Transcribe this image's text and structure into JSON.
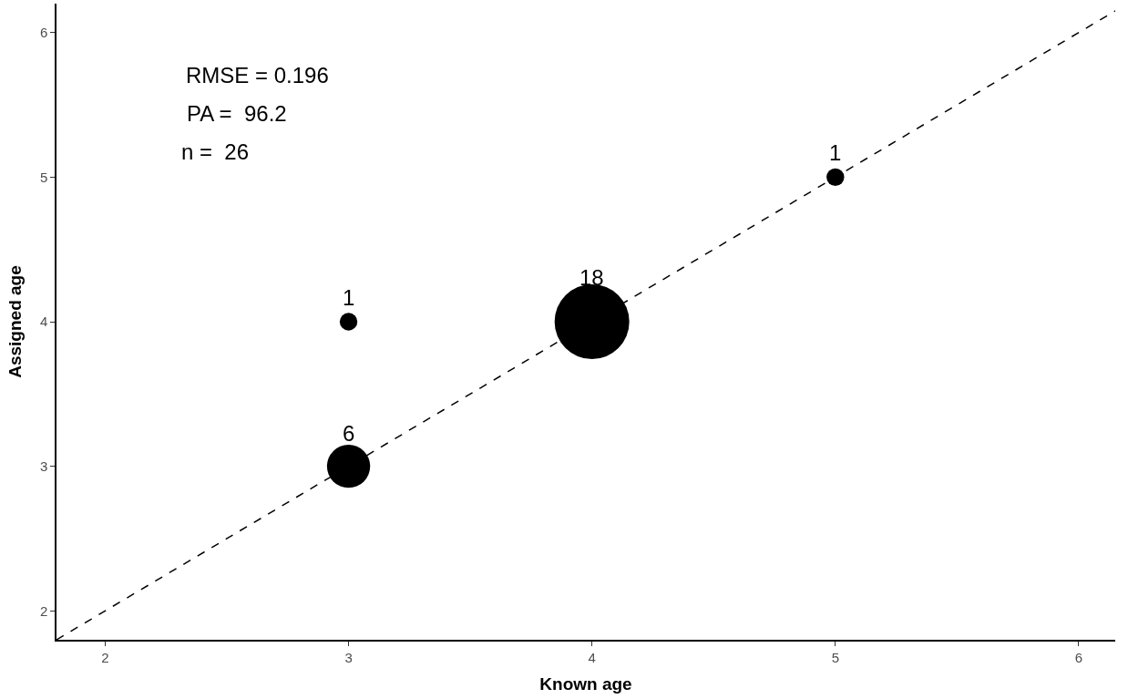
{
  "chart_data": {
    "type": "bubble",
    "xlabel": "Known age",
    "ylabel": "Assigned age",
    "series": [
      {
        "color": "#000000",
        "x": [
          3,
          3,
          4,
          5
        ],
        "values": [
          3,
          4,
          4,
          5
        ],
        "sizes": [
          0.333,
          0.056,
          1,
          0.056
        ]
      },
      {
        "type": "line",
        "color": "#000000",
        "line_style": "dashed",
        "x": [
          1.8,
          6.15
        ],
        "values": [
          1.8,
          6.15
        ]
      }
    ],
    "annotations": [
      "RMSE = 0.196",
      "PA =  96.2",
      "n =  26",
      {
        "text": "6",
        "x": 3,
        "y": 3
      },
      {
        "text": "1",
        "x": 3,
        "y": 4
      },
      {
        "text": "18",
        "x": 4,
        "y": 4
      },
      {
        "text": "1",
        "x": 5,
        "y": 5
      }
    ],
    "xlim": [
      1.8,
      6.15
    ],
    "ylim": [
      1.8,
      6.2
    ],
    "xticks": [
      2,
      3,
      4,
      5,
      6
    ],
    "yticks": [
      2,
      3,
      4,
      5,
      6
    ]
  }
}
